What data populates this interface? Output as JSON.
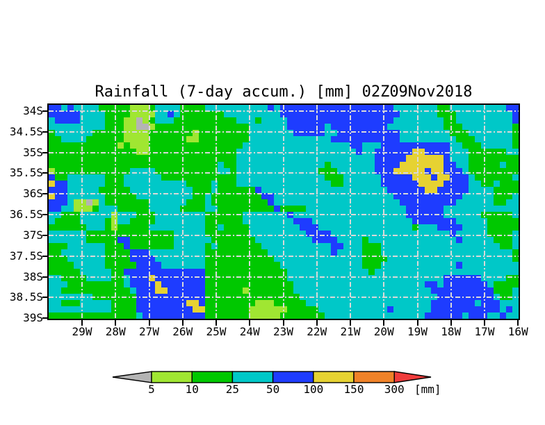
{
  "title": "Rainfall (7-day accum.) [mm] 02Z09Nov2018",
  "axes": {
    "y_tick_labels": [
      "34S",
      "34.5S",
      "35S",
      "35.5S",
      "36S",
      "36.5S",
      "37S",
      "37.5S",
      "38S",
      "38.5S",
      "39S"
    ],
    "x_tick_labels": [
      "29W",
      "28W",
      "27W",
      "26W",
      "25W",
      "24W",
      "23W",
      "22W",
      "21W",
      "20W",
      "19W",
      "18W",
      "17W",
      "16W"
    ]
  },
  "legend": {
    "tick_labels": [
      "5",
      "10",
      "25",
      "50",
      "100",
      "150",
      "300"
    ],
    "unit_label": "[mm]",
    "segment_colors": [
      "#a0e632",
      "#00c800",
      "#00c8c8",
      "#1e3cff",
      "#e6d232",
      "#f08228"
    ],
    "arrow_left_color": "#b4b4b4",
    "arrow_right_color": "#f03c3c"
  },
  "chart_data": {
    "type": "heatmap",
    "title": "Rainfall (7-day accum.) [mm] 02Z09Nov2018",
    "x_tick_labels": [
      "29W",
      "28W",
      "27W",
      "26W",
      "25W",
      "24W",
      "23W",
      "22W",
      "21W",
      "20W",
      "19W",
      "18W",
      "17W",
      "16W"
    ],
    "y_tick_labels": [
      "34S",
      "34.5S",
      "35S",
      "35.5S",
      "36S",
      "36.5S",
      "37S",
      "37.5S",
      "38S",
      "38.5S",
      "39S"
    ],
    "levels_mm": [
      5,
      10,
      25,
      50,
      100,
      150,
      300
    ],
    "legend_units": "[mm]",
    "legend_position": "bottom",
    "grid_on": true,
    "grid_size": {
      "cols": 75,
      "rows": 34
    },
    "color_key": {
      "A": "#b4b4b4",
      "L": "#a0e632",
      "G": "#00c800",
      "C": "#00c8c8",
      "B": "#1e3cff",
      "Y": "#e6d232",
      "O": "#f08228",
      "R": "#f03c3c"
    },
    "color_meaning_mm": {
      "A": "<5",
      "L": "5-10",
      "G": "10-25",
      "C": "25-50",
      "B": "50-100",
      "Y": "100-150",
      "O": "150-300",
      "R": ">300"
    },
    "grid_rows": [
      "BBCBCCCCGGGGGLLLGCCCCGGGGCCCCCCCCCCBCBBBBBBBBBBBBBBBBBBCCCCCCCGGCCCCCCCCCBB",
      "BBBBBCCCCGGGGLLLLCCBCGGGGGGGCCCCCCCCCBBBBBBBBBBBBBBBBBBBCCCCCCGGGCCCCCCCCCB",
      "CBBBBCCCCGGGLLALGCCCGGGGGGGGGGCCCGCCCCBBBBBBBBBBBBBBBBBCCCCCCCCGGCCCCCCCCCB",
      "CCCCCCCCCGGGLLAALGGGGGGGGGGGGGGGCCCCCCBBBBBBCBBBBBBBBBCCCCCCCCCGGGCCCCCCCCG",
      "GCCCCCCGGGGGLLLLGGGGGGGLGGGGGGGGCCCCCCCBBBBBCCBBBBBBBBBBCCCCCCCCGGGCCCCCCCG",
      "GGCCCCGGGGGGLLLLGGGGGGLLGGGGGGGGCCCCCCCCCCCCCBBBBBBBBBBBCCCCCCCCCGGGCCCCCCG",
      "GGGGGGGGGGGLGLLLGGGGGGGGGGGGGGGCCCCCCCCCCCCCCCCCBBCCCBBBBBBBBBBBCCGGGCCCCCG",
      "GGGGGGGGGGGGGGLLGGGGGGGGGGGGGGCCCCCCCCCCCCCCCCCCCBCCBBBBBBYYBBBBCCCGGGGGGCC",
      "GGGGGGGGGGGGGGGGGGGGGGGGGGGGGGCCCCCCCCCCCCCCCCCCCCCCBBBBBYYYYYYBCCCGGGGGGGG",
      "GGGGGGGGGGGGGGGGGGGGGGGGGGGCGGCCCCCCCCCCCCCCGCCCCCCCBBBBYYYYYYYBBCCGGGGGCGG",
      "LGGGGGGGGGGGGCCCCGGGGGGGGGGCCGCCCCCCCCCCCCCGGGCCCCCCBBBYYYYYBYYBBBCGGGGGGGG",
      "BGGCCCCCCGGGCCCCCCGGGGGGGGGGGGCCCCCCCCCCCCCCGGGCCCCCCBBBBBYYYBYYBBBCGGGGGGC",
      "YBBCCCCCCGGGCCCCCCCCCCGGGGCGGGCCCCCCCCCCCCCCCGGCCCCCCBBBBBBYYYYBBBBCCGGCGGG",
      "BBBCCCCCGGGGGCCCCCCCCCCGGGCGGGGGGBCCCCCCCCCCCCCCCCCCCCBBBBBBYYBBBBBCCCCGGGG",
      "YBBCCCCCCGGGGGCCCCCCCCCGGCGGGGGGGGBBCCCCCCCCCCCCCCCCCCCBBBBBBBBBBBCCCCCGGGC",
      "BBBCLLALCGGGGGGGCCCCCCGGGCGGGGGGGGGBCCCCCCCCCCCCCCCCCCCCBBBBBBBBBCCCCCCGGCC",
      "BBCCLLLGCCCGGGGGCCCCCGGGGCCGGGGGGGGGBGGGGCCCCCCCCCCCCCCCCBBBBBBCCCCCCCCCCCC",
      "CCGGGCCCCCLCCCGGGCCCCCCCCGGGGGGCCCCCCCBCCCCCCCCCCCCCCCCCCBBBBBBCCCCCCGGGGGC",
      "CGGGGCCCCGLCCGGGGCCCCCCCCGGGGGGCCCCCCCCBBBCCCCCCCCCCCCCCCCBBBBBBBCCCCCGGGGG",
      "GGGGGGCCCGLGGGGGCCCCCCCCCGGCGGGGCCCCCCCCBBBCCCCCCCCCCCCCCCGCCCBBBBCCCCGGGGG",
      "CCCCCCGGGGGGGGGGGGGGCCCCCGGGGGGGCCCCCCCCCBBBBCCCCCCCCCCCCCCCCCCCBCCCCCGGGG",
      "CCCCCCGGGGGBBGGGGGGGCCCCCCGGGGGGGCCCCCCCCCBBBBCCCCGCCCCCCCCCCCCCCBCCCCCGGGC",
      "GGGCCCCCCGGGBGGGGGGGCCCCCGCGGGGGGGCCCCCCCCCCCBBCCCGGGCCCCCCCCCCCCCCCCCCCGGC",
      "GGCCCCCCCGGGGBBBCCCCCCCCCGGGGGGGGGGCCCCCCCCCCBCCCCGGGCCCCCCCCCCCCCCCCCCCCCG",
      "GGGCCCCCCGGGGBBBBCCCCCCCCGGGGGGGGGGGCCCCCCCCCCCCCCGGGGCCCCCCCCCCCCCCCCCCCCG",
      "GGGGCCCCCGGGGGBBBBCCCCCCCGGGGGGGGGGGGCCCCCCCCCCCCCGGGCCCCCCCCCCCCBCCCCCCCCC",
      "GGGGGCCCCCGGBBBBBBBBBBBBBGGGGGGGGGGGGGCCCCCCCCCCCCCGCCCCCCCCCCCCCCCCCCCCCCC",
      "CCGGGGCCCCGGCBBBYBBBBBBBBGGGGGGGGGGGGGCCCCCCCCCCCCCCCCCCCCCCCCCBBBBBBCCCCGG",
      "CCCGGGGGGGGGCBBBBYBBBBBBBGGGGGGGGGGGGGGCCCCCCCCCCCCCCCCCCCCCBBCBBBBBBBCGGGG",
      "CCGGGGGGGGGGGCBBBYYBBBBBBGGGGGGLGGGGGGGCCCCCCCCCCCCCCCCCCCCCCBBBBBBBBBBGGGC",
      "CCCCCCCGGGGGGGBBBBBBBBBBBGGGGGGGGGGGGGGGCCCCCCCCCCCCCCCCCCCCCCBBBBBBBBBCGG",
      "CCGGGCCCCCGGGGBBBBBBBBYYBGGGGGGGGLLLGGGGGCCCCCCCCCCCCCCCCCCCCBBBBBBBCBBBCCC",
      "CCCCCCCCCCGGGGBBBBBBBBBYYGGGGGGGLLLLLLGGGGGCCCCCCCCCCCBCCCCCCBBBBBBBBBBBCBC",
      "GGGGGGGGGGGGGGCBBBBBBBBBBGGGGGGGLLLLLGGGGGGGCCCCCCCCCCCCCCCCBBBBBBCBBBCCBC"
    ]
  }
}
